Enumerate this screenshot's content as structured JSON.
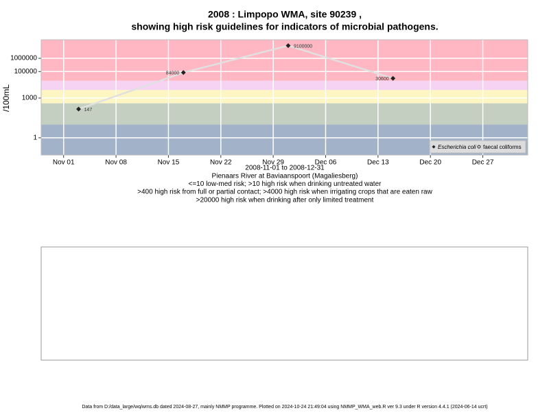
{
  "chart_data": {
    "type": "line",
    "title": "2008 : Limpopo WMA, site 90239 ,",
    "title_line2": "showing high risk guidelines for indicators of microbial pathogens.",
    "subtitle_lines": [
      "2008-11-01 to 2008-12-31",
      "Pienaars River at Baviaanspoort (Magaliesberg)",
      "<=10 low-med risk; >10 high risk when drinking untreated water",
      ">400 high risk from full or partial contact; >4000 high risk when irrigating crops that are eaten raw",
      ">20000 high risk when drinking after only limited treatment"
    ],
    "y_label": "/100mL",
    "log_y": true,
    "grid": true,
    "legend_position": "bottom-right",
    "x": [
      "2008-11-03",
      "2008-11-17",
      "2008-12-01",
      "2008-12-15"
    ],
    "series": [
      {
        "name": "Escherichia coli",
        "color": "#222222",
        "marker": "diamond",
        "values": [
          147,
          84000,
          9100000,
          30600
        ]
      },
      {
        "name": "faecal coliforms",
        "color": "#222222",
        "marker": "circle",
        "values": [
          null,
          null,
          null,
          null
        ]
      }
    ],
    "xlim": [
      "2008-10-29",
      "2009-01-02"
    ],
    "xticks": [
      {
        "value": "2008-11-01",
        "label": "Nov 01"
      },
      {
        "value": "2008-11-08",
        "label": "Nov 08"
      },
      {
        "value": "2008-11-15",
        "label": "Nov 15"
      },
      {
        "value": "2008-11-22",
        "label": "Nov 22"
      },
      {
        "value": "2008-11-29",
        "label": "Nov 29"
      },
      {
        "value": "2008-12-06",
        "label": "Dec 06"
      },
      {
        "value": "2008-12-13",
        "label": "Dec 13"
      },
      {
        "value": "2008-12-20",
        "label": "Dec 20"
      },
      {
        "value": "2008-12-27",
        "label": "Dec 27"
      }
    ],
    "ylim": [
      0.05,
      25000000
    ],
    "yticks": [
      1,
      1000,
      100000,
      1000000
    ],
    "bands": [
      {
        "from": 20000,
        "to": 25000000,
        "color": "#ffb7c3"
      },
      {
        "from": 4000,
        "to": 20000,
        "color": "#f6d3f2"
      },
      {
        "from": 400,
        "to": 4000,
        "color": "#fdf5c2"
      },
      {
        "from": 10,
        "to": 400,
        "color": "#c5cfc1"
      },
      {
        "from": 0.05,
        "to": 10,
        "color": "#a2b2c9"
      }
    ],
    "footer": "Data from D:/data_large/wq/wms.db dated 2024-08-27, mainly NMMP programme. Plotted on 2024-10-24 21:49:04 using NMMP_WMA_web.R ver 9.3 under R version 4.4.1 (2024-06-14 ucrt)"
  }
}
